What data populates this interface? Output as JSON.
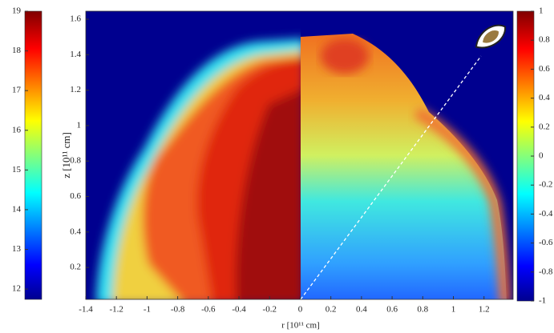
{
  "chart_data": {
    "type": "heatmap",
    "xlabel": "r [10¹¹ cm]",
    "ylabel": "z [10¹¹ cm]",
    "xlim": [
      -1.4,
      1.39
    ],
    "xticks": [
      -1.4,
      -1.2,
      -1,
      -0.8,
      -0.6,
      -0.4,
      -0.2,
      0,
      0.2,
      0.4,
      0.6,
      0.8,
      1,
      1.2
    ],
    "ylim": [
      0.02,
      1.645
    ],
    "yticks": [
      0.2,
      0.4,
      0.6,
      0.8,
      1,
      1.2,
      1.4,
      1.6
    ],
    "colorbars": [
      {
        "side": "left",
        "lim": [
          11.74,
          19
        ],
        "ticks": [
          12,
          13,
          14,
          15,
          16,
          17,
          18,
          19
        ]
      },
      {
        "side": "right",
        "lim": [
          -1,
          1
        ],
        "ticks": [
          -1,
          -0.8,
          -0.6,
          -0.4,
          -0.2,
          0,
          0.2,
          0.4,
          0.6,
          0.8,
          1
        ]
      }
    ]
  }
}
